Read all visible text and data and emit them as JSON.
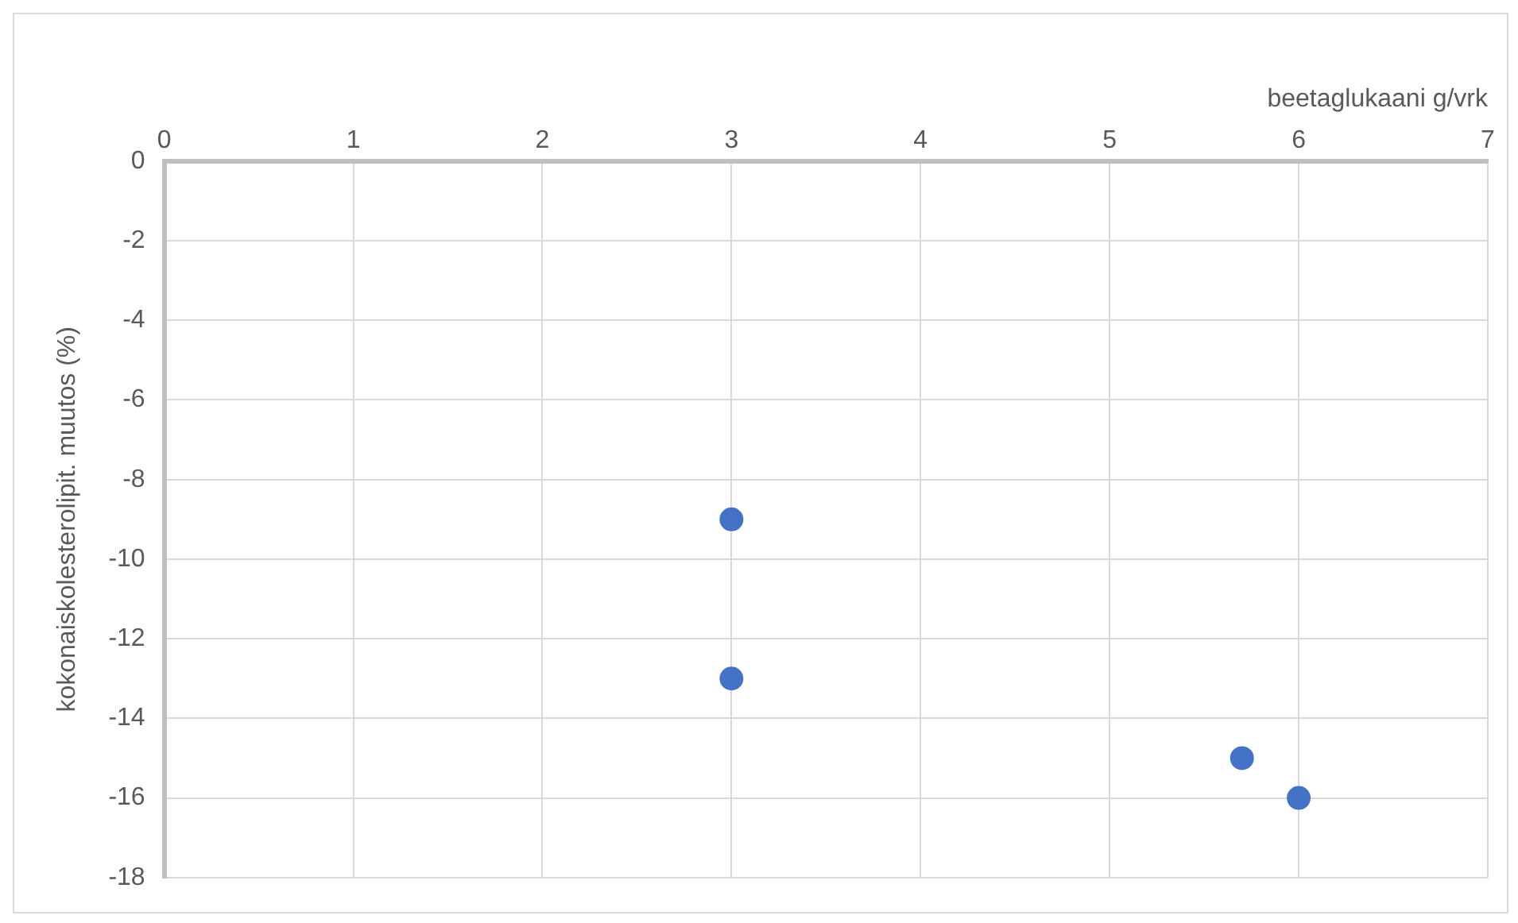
{
  "chart_data": {
    "type": "scatter",
    "xlabel": "beetaglukaani g/vrk",
    "ylabel": "kokonaiskolesterolipit. muutos (%)",
    "x": [
      3,
      3,
      5.7,
      6
    ],
    "series": [
      {
        "color": "#4472c4",
        "values": [
          -9,
          -13,
          -15,
          -16
        ]
      }
    ],
    "xlim": [
      0,
      7
    ],
    "xticks": [
      0,
      1,
      2,
      3,
      4,
      5,
      6,
      7
    ],
    "ylim": [
      -18,
      0
    ],
    "yticks": [
      0,
      -2,
      -4,
      -6,
      -8,
      -10,
      -12,
      -14,
      -16,
      -18
    ],
    "grid": true,
    "legend": false,
    "marker": "circle"
  }
}
